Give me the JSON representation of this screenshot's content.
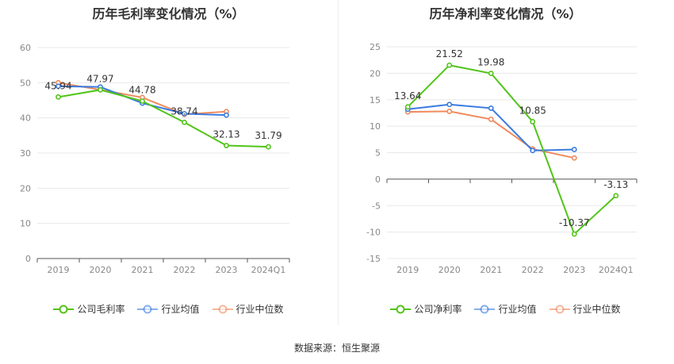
{
  "chart_data": [
    {
      "type": "line",
      "title": "历年毛利率变化情况（%）",
      "categories": [
        "2019",
        "2020",
        "2021",
        "2022",
        "2023",
        "2024Q1"
      ],
      "yticks": [
        0,
        10,
        20,
        30,
        40,
        50,
        60
      ],
      "ylim": [
        0,
        60
      ],
      "grid": true,
      "legend_position": "bottom",
      "series": [
        {
          "name": "公司毛利率",
          "color": "#52c41a",
          "values": [
            45.94,
            47.97,
            44.78,
            38.74,
            32.13,
            31.79
          ],
          "labeled": true
        },
        {
          "name": "行业均值",
          "color": "#3a7be0",
          "values": [
            49.0,
            48.8,
            44.2,
            41.2,
            40.8,
            null
          ],
          "labeled": false
        },
        {
          "name": "行业中位数",
          "color": "#f08a5d",
          "values": [
            50.0,
            48.0,
            45.8,
            41.0,
            41.8,
            null
          ],
          "labeled": false
        }
      ]
    },
    {
      "type": "line",
      "title": "历年净利率变化情况（%）",
      "categories": [
        "2019",
        "2020",
        "2021",
        "2022",
        "2023",
        "2024Q1"
      ],
      "yticks": [
        -15,
        -10,
        -5,
        0,
        5,
        10,
        15,
        20,
        25
      ],
      "ylim": [
        -15,
        25
      ],
      "grid": true,
      "legend_position": "bottom",
      "series": [
        {
          "name": "公司净利率",
          "color": "#52c41a",
          "values": [
            13.64,
            21.52,
            19.98,
            10.85,
            -10.37,
            -3.13
          ],
          "labeled": true
        },
        {
          "name": "行业均值",
          "color": "#3a7be0",
          "values": [
            13.2,
            14.1,
            13.4,
            5.4,
            5.6,
            null
          ],
          "labeled": false
        },
        {
          "name": "行业中位数",
          "color": "#f08a5d",
          "values": [
            12.7,
            12.8,
            11.3,
            5.7,
            4.0,
            null
          ],
          "labeled": false
        }
      ]
    }
  ],
  "source_text": "数据来源：恒生聚源"
}
